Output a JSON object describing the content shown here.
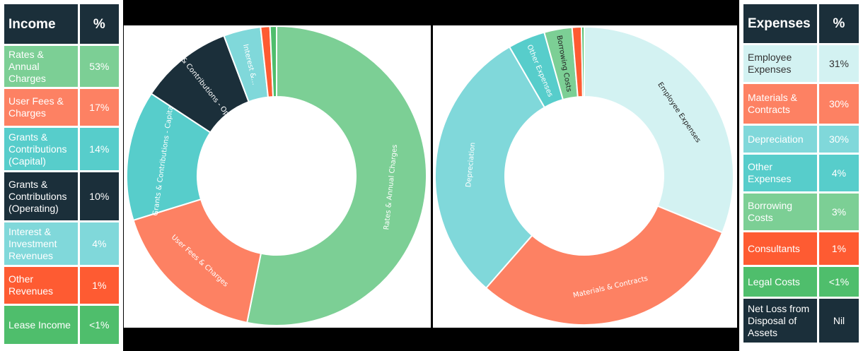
{
  "income": {
    "header": {
      "label": "Income",
      "pct": "%"
    },
    "rows": [
      {
        "label": "Rates & Annual Charges",
        "pct": "53%",
        "color": "#7ccf95",
        "text_color": "#ffffff"
      },
      {
        "label": "User Fees & Charges",
        "pct": "17%",
        "color": "#fd8163",
        "text_color": "#ffffff"
      },
      {
        "label": "Grants & Contributions (Capital)",
        "pct": "14%",
        "color": "#57cdcb",
        "text_color": "#ffffff"
      },
      {
        "label": "Grants & Contributions (Operating)",
        "pct": "10%",
        "color": "#1b2f3a",
        "text_color": "#ffffff"
      },
      {
        "label": "Interest & Investment Revenues",
        "pct": "4%",
        "color": "#80d8da",
        "text_color": "#ffffff"
      },
      {
        "label": "Other Revenues",
        "pct": "1%",
        "color": "#fe5b32",
        "text_color": "#ffffff"
      },
      {
        "label": "Lease Income",
        "pct": "<1%",
        "color": "#4fbe6c",
        "text_color": "#ffffff"
      }
    ]
  },
  "expenses": {
    "header": {
      "label": "Expenses",
      "pct": "%"
    },
    "rows": [
      {
        "label": "Employee Expenses",
        "pct": "31%",
        "color": "#d3f2f2",
        "text_color": "#333333"
      },
      {
        "label": "Materials & Contracts",
        "pct": "30%",
        "color": "#fd8163",
        "text_color": "#ffffff"
      },
      {
        "label": "Depreciation",
        "pct": "30%",
        "color": "#80d8da",
        "text_color": "#ffffff"
      },
      {
        "label": "Other Expenses",
        "pct": "4%",
        "color": "#57cdcb",
        "text_color": "#ffffff"
      },
      {
        "label": "Borrowing Costs",
        "pct": "3%",
        "color": "#7ccf95",
        "text_color": "#ffffff"
      },
      {
        "label": "Consultants",
        "pct": "1%",
        "color": "#fe5b32",
        "text_color": "#ffffff"
      },
      {
        "label": "Legal Costs",
        "pct": "<1%",
        "color": "#4fbe6c",
        "text_color": "#ffffff"
      },
      {
        "label": "Net Loss from Disposal of Assets",
        "pct": "Nil",
        "color": "#1b2f3a",
        "text_color": "#ffffff"
      }
    ]
  },
  "chart_data": [
    {
      "type": "pie",
      "donut": true,
      "categories": [
        "Rates & Annual Charges",
        "User Fees & Charges",
        "Grants & Contributions - Capital",
        "Grants & Contributions - Operating",
        "Interest & Investment Revenues",
        "Other Revenues",
        "Lease Income"
      ],
      "labels": [
        "Rates & Annual Charges",
        "User Fees & Charges",
        "Grants & Contributions - Capital",
        "Grants & Contributions - Operating",
        "Interest &...",
        "",
        ""
      ],
      "values": [
        53,
        17,
        14,
        10,
        4,
        1,
        0.7
      ],
      "colors": [
        "#7ccf95",
        "#fd8163",
        "#57cdcb",
        "#1b2f3a",
        "#80d8da",
        "#fe5b32",
        "#4fbe6c"
      ],
      "label_colors": [
        "#ffffff",
        "#ffffff",
        "#ffffff",
        "#ffffff",
        "#ffffff",
        "#ffffff",
        "#ffffff"
      ]
    },
    {
      "type": "pie",
      "donut": true,
      "categories": [
        "Employee Expenses",
        "Materials & Contracts",
        "Depreciation",
        "Other Expenses",
        "Borrowing Costs",
        "Consultants",
        "Legal Costs"
      ],
      "labels": [
        "Employee Expenses",
        "Materials & Contracts",
        "Depreciation",
        "Other Expenses",
        "Borrowing Costs",
        "",
        ""
      ],
      "values": [
        31,
        30,
        30,
        4,
        3,
        1,
        0.3
      ],
      "colors": [
        "#d3f2f2",
        "#fd8163",
        "#80d8da",
        "#57cdcb",
        "#7ccf95",
        "#fe5b32",
        "#4fbe6c"
      ],
      "label_colors": [
        "#222222",
        "#ffffff",
        "#ffffff",
        "#ffffff",
        "#222222",
        "#ffffff",
        "#ffffff"
      ]
    }
  ]
}
